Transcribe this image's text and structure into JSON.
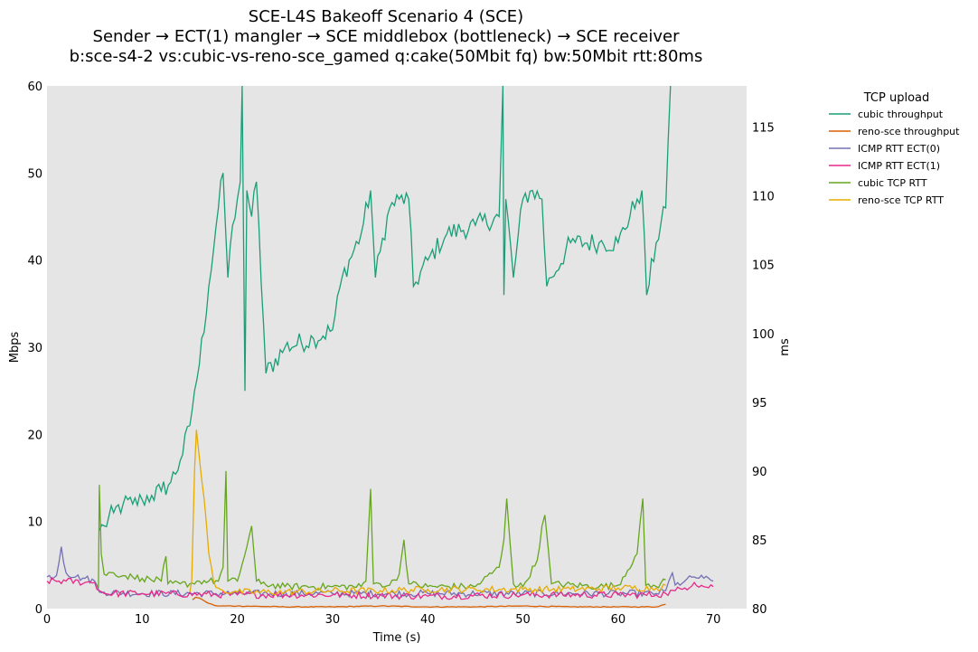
{
  "chart_data": {
    "type": "line",
    "title": [
      "SCE-L4S Bakeoff Scenario 4 (SCE)",
      "Sender → ECT(1) mangler → SCE middlebox (bottleneck) → SCE receiver",
      "b:sce-s4-2 vs:cubic-vs-reno-sce_gamed q:cake(50Mbit fq) bw:50Mbit rtt:80ms"
    ],
    "xlabel": "Time (s)",
    "ylabel": "Mbps",
    "y2label": "ms",
    "xlim": [
      0,
      73.5
    ],
    "ylim": [
      0,
      60
    ],
    "y2lim": [
      80,
      118
    ],
    "xticks": [
      0,
      10,
      20,
      30,
      40,
      50,
      60,
      70
    ],
    "yticks": [
      0,
      10,
      20,
      30,
      40,
      50,
      60
    ],
    "y2ticks": [
      80,
      85,
      90,
      95,
      100,
      105,
      110,
      115
    ],
    "grid": false,
    "background": "#e5e5e5",
    "legend": {
      "title": "TCP upload",
      "placement": "outside-right"
    },
    "series": [
      {
        "name": "cubic throughput",
        "axis": "left",
        "color": "#1b9e77",
        "x": [
          5.5,
          6.0,
          7.0,
          8.0,
          9.0,
          10.0,
          11.0,
          12.0,
          13.0,
          14.0,
          15.0,
          15.5,
          16.0,
          17.0,
          18.0,
          18.5,
          19.0,
          19.5,
          20.0,
          20.3,
          20.5,
          20.8,
          21.0,
          21.5,
          22.0,
          23.0,
          25.0,
          28.0,
          30.0,
          31.0,
          33.0,
          34.0,
          34.5,
          35.0,
          36.0,
          37.0,
          38.0,
          38.5,
          40.0,
          42.0,
          45.0,
          47.5,
          47.9,
          48.0,
          48.2,
          49.0,
          50.0,
          51.0,
          52.0,
          52.5,
          53.0,
          55.0,
          58.0,
          60.0,
          62.0,
          62.5,
          63.0,
          64.0,
          65.0,
          65.5
        ],
        "y": [
          9,
          9.5,
          11,
          12,
          12,
          12.5,
          13,
          13.5,
          14.5,
          17,
          21,
          25,
          28,
          37,
          46,
          50,
          38,
          44,
          47,
          49,
          62,
          25,
          48,
          45,
          49,
          27,
          30,
          31,
          32,
          38,
          43,
          48,
          38,
          41,
          46,
          47,
          47,
          37,
          40,
          43,
          44,
          45,
          62,
          36,
          47,
          38,
          47,
          48,
          47,
          37,
          38,
          42,
          42,
          42,
          47,
          48,
          36,
          42,
          46,
          62
        ]
      },
      {
        "name": "reno-sce throughput",
        "axis": "left",
        "color": "#d95f02",
        "x": [
          15.3,
          15.6,
          16.0,
          16.5,
          17.0,
          17.5,
          18.0,
          20.0,
          25.0,
          30.0,
          35.0,
          40.0,
          45.0,
          50.0,
          55.0,
          60.0,
          64.0,
          65.0
        ],
        "y": [
          1.0,
          1.3,
          1.2,
          0.9,
          0.6,
          0.4,
          0.3,
          0.3,
          0.2,
          0.2,
          0.3,
          0.2,
          0.2,
          0.3,
          0.2,
          0.2,
          0.2,
          0.5
        ]
      },
      {
        "name": "ICMP RTT ECT(0)",
        "axis": "right",
        "color": "#7570b3",
        "x": [
          0,
          1.0,
          1.5,
          2.0,
          3.0,
          4.0,
          5.0,
          5.5,
          6.0,
          10.0,
          20.0,
          30.0,
          40.0,
          50.0,
          60.0,
          64.0,
          65.0,
          65.7,
          66.0,
          67.0,
          68.0,
          69.0,
          70.0
        ],
        "y": [
          82.3,
          82.4,
          84.5,
          82.6,
          82.3,
          82.2,
          82.0,
          81.2,
          81.2,
          81.1,
          81.1,
          81.1,
          81.1,
          81.1,
          81.1,
          81.1,
          81.3,
          82.6,
          81.7,
          82.0,
          82.3,
          82.2,
          82.0
        ]
      },
      {
        "name": "ICMP RTT ECT(1)",
        "axis": "right",
        "color": "#e7298a",
        "x": [
          0,
          2.0,
          4.0,
          5.0,
          5.5,
          6.0,
          10.0,
          20.0,
          30.0,
          40.0,
          50.0,
          60.0,
          64.0,
          65.0,
          66.0,
          67.0,
          68.0,
          69.0,
          70.0
        ],
        "y": [
          82.0,
          82.0,
          81.9,
          81.9,
          81.3,
          81.1,
          81.1,
          81.0,
          81.0,
          80.9,
          81.0,
          81.0,
          81.0,
          81.1,
          81.3,
          81.5,
          81.9,
          81.6,
          81.6
        ]
      },
      {
        "name": "cubic TCP RTT",
        "axis": "right",
        "color": "#66a61e",
        "x": [
          5.4,
          5.5,
          5.7,
          6.0,
          7.0,
          8.0,
          9.0,
          10.0,
          12.0,
          12.5,
          12.7,
          14.0,
          15.0,
          16.0,
          17.0,
          18.0,
          18.5,
          18.8,
          19.0,
          20.0,
          21.0,
          21.5,
          22.0,
          22.5,
          25.0,
          30.0,
          33.0,
          33.5,
          34.0,
          34.3,
          35.0,
          36.0,
          37.0,
          37.5,
          38.0,
          40.0,
          45.0,
          47.5,
          48.0,
          48.3,
          49.0,
          50.0,
          51.5,
          52.0,
          52.3,
          53.0,
          58.0,
          60.0,
          62.0,
          62.6,
          62.9,
          64.0,
          65.0
        ],
        "y": [
          81.5,
          89.0,
          84.0,
          82.5,
          82.6,
          82.4,
          82.3,
          82.2,
          82.0,
          83.8,
          81.8,
          81.8,
          81.8,
          82.0,
          82.0,
          82.0,
          83.0,
          90.0,
          82.0,
          82.0,
          84.5,
          86.0,
          82.0,
          81.8,
          81.6,
          81.6,
          81.6,
          82.0,
          88.7,
          81.8,
          81.8,
          81.7,
          82.5,
          85.0,
          81.8,
          81.6,
          81.6,
          83.0,
          85.0,
          88.0,
          81.8,
          81.6,
          83.5,
          86.0,
          86.8,
          81.8,
          81.6,
          81.7,
          84.0,
          88.0,
          81.7,
          81.6,
          82.1
        ]
      },
      {
        "name": "reno-sce TCP RTT",
        "axis": "right",
        "color": "#e6ab02",
        "x": [
          15.0,
          15.2,
          15.5,
          15.7,
          16.0,
          16.5,
          17.0,
          17.5,
          18.0,
          18.5,
          20.0,
          25.0,
          30.0,
          35.0,
          40.0,
          45.0,
          50.0,
          55.0,
          60.0,
          64.0,
          65.0
        ],
        "y": [
          81.2,
          82.0,
          90.0,
          93.0,
          91.0,
          88.0,
          84.0,
          82.0,
          81.5,
          81.3,
          81.2,
          81.2,
          81.3,
          81.3,
          81.4,
          81.4,
          81.4,
          81.4,
          81.5,
          81.5,
          81.7
        ]
      }
    ]
  }
}
